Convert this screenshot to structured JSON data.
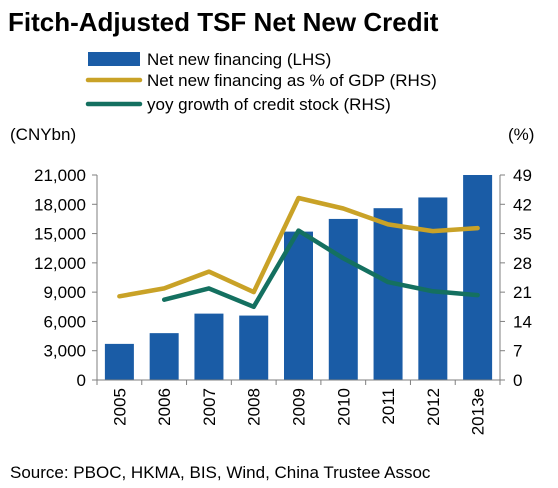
{
  "chart_data": {
    "type": "bar",
    "title": "Fitch-Adjusted TSF Net New Credit",
    "source": "Source: PBOC, HKMA, BIS, Wind, China Trustee Assoc",
    "left_unit": "(CNYbn)",
    "right_unit": "(%)",
    "categories": [
      "2005",
      "2006",
      "2007",
      "2008",
      "2009",
      "2010",
      "2011",
      "2012",
      "2013e"
    ],
    "series": [
      {
        "name": "Net new financing (LHS)",
        "kind": "bar",
        "axis": "left",
        "color": "#1A5CA6",
        "values": [
          3700,
          4800,
          6800,
          6600,
          15200,
          16500,
          17600,
          18700,
          21000
        ]
      },
      {
        "name": "Net new financing as % of GDP (RHS)",
        "kind": "line",
        "axis": "right",
        "color": "#C9A227",
        "values": [
          20,
          21.9,
          25.9,
          21,
          43.5,
          41,
          37.2,
          35.6,
          36.3
        ]
      },
      {
        "name": "yoy growth of credit stock (RHS)",
        "kind": "line",
        "axis": "right",
        "color": "#147060",
        "values": [
          null,
          19.2,
          21.9,
          17.5,
          35.7,
          29.1,
          23.4,
          21.2,
          20.3
        ]
      }
    ],
    "y_left": {
      "min": 0,
      "max": 21000,
      "ticks": [
        "0",
        "3,000",
        "6,000",
        "9,000",
        "12,000",
        "15,000",
        "18,000",
        "21,000"
      ]
    },
    "y_right": {
      "min": 0,
      "max": 49,
      "ticks": [
        "0",
        "7",
        "14",
        "21",
        "28",
        "35",
        "42",
        "49"
      ]
    },
    "legend_position": "top",
    "grid": false
  }
}
